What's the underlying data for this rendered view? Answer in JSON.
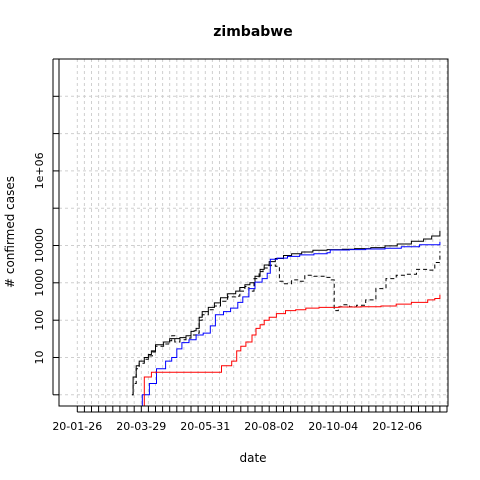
{
  "chart_data": {
    "type": "line",
    "title": "zimbabwe",
    "xlabel": "date",
    "ylabel": "# confirmed cases",
    "y_scale": "log",
    "grid": true,
    "ylim": [
      0.5,
      1000000000
    ],
    "x_range": [
      "2020-01-08",
      "2021-01-25"
    ],
    "x_ticks": [
      "20-01-26",
      "20-03-29",
      "20-05-31",
      "20-08-02",
      "20-10-04",
      "20-12-06"
    ],
    "y_ticks": [
      {
        "label": "10",
        "value": 10
      },
      {
        "label": "100",
        "value": 100
      },
      {
        "label": "1000",
        "value": 1000
      },
      {
        "label": "10000",
        "value": 10000
      },
      {
        "label": "1e+06",
        "value": 1000000
      }
    ],
    "series": [
      {
        "color": "#000000",
        "style": "solid",
        "points": [
          [
            "2020-03-20",
            1
          ],
          [
            "2020-03-21",
            3
          ],
          [
            "2020-03-23",
            3
          ],
          [
            "2020-03-24",
            6
          ],
          [
            "2020-03-27",
            8
          ],
          [
            "2020-03-30",
            8
          ],
          [
            "2020-04-01",
            10
          ],
          [
            "2020-04-05",
            12
          ],
          [
            "2020-04-08",
            15
          ],
          [
            "2020-04-12",
            22
          ],
          [
            "2020-04-20",
            26
          ],
          [
            "2020-04-26",
            32
          ],
          [
            "2020-05-06",
            34
          ],
          [
            "2020-05-12",
            38
          ],
          [
            "2020-05-17",
            50
          ],
          [
            "2020-05-20",
            52
          ],
          [
            "2020-05-22",
            60
          ],
          [
            "2020-05-25",
            120
          ],
          [
            "2020-05-28",
            170
          ],
          [
            "2020-06-03",
            220
          ],
          [
            "2020-06-09",
            290
          ],
          [
            "2020-06-15",
            400
          ],
          [
            "2020-06-22",
            510
          ],
          [
            "2020-06-30",
            600
          ],
          [
            "2020-07-04",
            750
          ],
          [
            "2020-07-09",
            890
          ],
          [
            "2020-07-14",
            1000
          ],
          [
            "2020-07-19",
            1500
          ],
          [
            "2020-07-24",
            2300
          ],
          [
            "2020-07-28",
            3000
          ],
          [
            "2020-08-02",
            3700
          ],
          [
            "2020-08-08",
            4500
          ],
          [
            "2020-08-16",
            5400
          ],
          [
            "2020-08-24",
            6000
          ],
          [
            "2020-09-03",
            6700
          ],
          [
            "2020-09-14",
            7500
          ],
          [
            "2020-09-28",
            7800
          ],
          [
            "2020-10-13",
            8000
          ],
          [
            "2020-10-25",
            8300
          ],
          [
            "2020-11-10",
            8800
          ],
          [
            "2020-11-24",
            9800
          ],
          [
            "2020-12-06",
            11000
          ],
          [
            "2020-12-20",
            13000
          ],
          [
            "2021-01-01",
            15000
          ],
          [
            "2021-01-09",
            18000
          ],
          [
            "2021-01-17",
            25000
          ]
        ]
      },
      {
        "color": "#000000",
        "style": "dashed",
        "points": [
          [
            "2020-03-20",
            1
          ],
          [
            "2020-03-21",
            2
          ],
          [
            "2020-03-24",
            5
          ],
          [
            "2020-03-27",
            7
          ],
          [
            "2020-04-01",
            9
          ],
          [
            "2020-04-05",
            11
          ],
          [
            "2020-04-09",
            14
          ],
          [
            "2020-04-12",
            20
          ],
          [
            "2020-04-20",
            23
          ],
          [
            "2020-04-25",
            28
          ],
          [
            "2020-04-28",
            38
          ],
          [
            "2020-05-01",
            26
          ],
          [
            "2020-05-06",
            30
          ],
          [
            "2020-05-12",
            33
          ],
          [
            "2020-05-17",
            40
          ],
          [
            "2020-05-22",
            45
          ],
          [
            "2020-05-25",
            100
          ],
          [
            "2020-05-28",
            140
          ],
          [
            "2020-06-03",
            190
          ],
          [
            "2020-06-09",
            240
          ],
          [
            "2020-06-15",
            320
          ],
          [
            "2020-06-22",
            420
          ],
          [
            "2020-06-30",
            440
          ],
          [
            "2020-07-04",
            600
          ],
          [
            "2020-07-09",
            800
          ],
          [
            "2020-07-13",
            600
          ],
          [
            "2020-07-18",
            1300
          ],
          [
            "2020-07-23",
            2000
          ],
          [
            "2020-07-27",
            2500
          ],
          [
            "2020-07-31",
            2900
          ],
          [
            "2020-08-04",
            3000
          ],
          [
            "2020-08-08",
            2800
          ],
          [
            "2020-08-12",
            1100
          ],
          [
            "2020-08-16",
            950
          ],
          [
            "2020-08-24",
            1200
          ],
          [
            "2020-08-30",
            1100
          ],
          [
            "2020-09-06",
            1600
          ],
          [
            "2020-09-15",
            1500
          ],
          [
            "2020-09-25",
            1400
          ],
          [
            "2020-10-02",
            1200
          ],
          [
            "2020-10-05",
            180
          ],
          [
            "2020-10-09",
            230
          ],
          [
            "2020-10-13",
            260
          ],
          [
            "2020-10-20",
            230
          ],
          [
            "2020-10-27",
            250
          ],
          [
            "2020-11-05",
            350
          ],
          [
            "2020-11-15",
            700
          ],
          [
            "2020-11-25",
            1300
          ],
          [
            "2020-12-05",
            1600
          ],
          [
            "2020-12-15",
            1700
          ],
          [
            "2020-12-25",
            2300
          ],
          [
            "2021-01-05",
            2200
          ],
          [
            "2021-01-12",
            3500
          ],
          [
            "2021-01-17",
            7000
          ]
        ]
      },
      {
        "color": "#0000ff",
        "style": "solid",
        "points": [
          [
            "2020-03-27",
            0.5
          ],
          [
            "2020-03-29",
            0.5
          ],
          [
            "2020-03-30",
            1
          ],
          [
            "2020-04-05",
            1
          ],
          [
            "2020-04-06",
            2
          ],
          [
            "2020-04-12",
            2
          ],
          [
            "2020-04-13",
            5
          ],
          [
            "2020-04-20",
            5
          ],
          [
            "2020-04-22",
            8
          ],
          [
            "2020-04-28",
            10
          ],
          [
            "2020-05-03",
            17
          ],
          [
            "2020-05-08",
            25
          ],
          [
            "2020-05-15",
            30
          ],
          [
            "2020-05-22",
            40
          ],
          [
            "2020-05-29",
            45
          ],
          [
            "2020-06-05",
            70
          ],
          [
            "2020-06-10",
            140
          ],
          [
            "2020-06-18",
            170
          ],
          [
            "2020-06-25",
            210
          ],
          [
            "2020-07-02",
            300
          ],
          [
            "2020-07-07",
            420
          ],
          [
            "2020-07-13",
            700
          ],
          [
            "2020-07-19",
            1050
          ],
          [
            "2020-07-26",
            1300
          ],
          [
            "2020-07-31",
            1800
          ],
          [
            "2020-08-03",
            4300
          ],
          [
            "2020-08-10",
            4600
          ],
          [
            "2020-08-20",
            5100
          ],
          [
            "2020-09-01",
            5600
          ],
          [
            "2020-09-15",
            6000
          ],
          [
            "2020-09-28",
            6400
          ],
          [
            "2020-10-01",
            7600
          ],
          [
            "2020-10-20",
            7800
          ],
          [
            "2020-11-05",
            8100
          ],
          [
            "2020-11-24",
            8500
          ],
          [
            "2020-12-10",
            9300
          ],
          [
            "2020-12-28",
            10500
          ],
          [
            "2021-01-17",
            12500
          ]
        ]
      },
      {
        "color": "#ff0000",
        "style": "solid",
        "points": [
          [
            "2020-03-20",
            0.5
          ],
          [
            "2020-03-31",
            0.5
          ],
          [
            "2020-04-01",
            3
          ],
          [
            "2020-04-07",
            3
          ],
          [
            "2020-04-08",
            4
          ],
          [
            "2020-06-15",
            4
          ],
          [
            "2020-06-16",
            6
          ],
          [
            "2020-06-22",
            6
          ],
          [
            "2020-06-26",
            8
          ],
          [
            "2020-06-30",
            8
          ],
          [
            "2020-07-01",
            15
          ],
          [
            "2020-07-05",
            20
          ],
          [
            "2020-07-10",
            26
          ],
          [
            "2020-07-16",
            40
          ],
          [
            "2020-07-20",
            60
          ],
          [
            "2020-07-24",
            75
          ],
          [
            "2020-07-28",
            100
          ],
          [
            "2020-08-02",
            120
          ],
          [
            "2020-08-09",
            150
          ],
          [
            "2020-08-18",
            180
          ],
          [
            "2020-08-28",
            190
          ],
          [
            "2020-09-07",
            210
          ],
          [
            "2020-09-20",
            220
          ],
          [
            "2020-10-10",
            225
          ],
          [
            "2020-10-31",
            230
          ],
          [
            "2020-11-20",
            240
          ],
          [
            "2020-12-05",
            270
          ],
          [
            "2020-12-20",
            300
          ],
          [
            "2021-01-05",
            350
          ],
          [
            "2021-01-12",
            380
          ],
          [
            "2021-01-17",
            480
          ]
        ]
      }
    ]
  }
}
